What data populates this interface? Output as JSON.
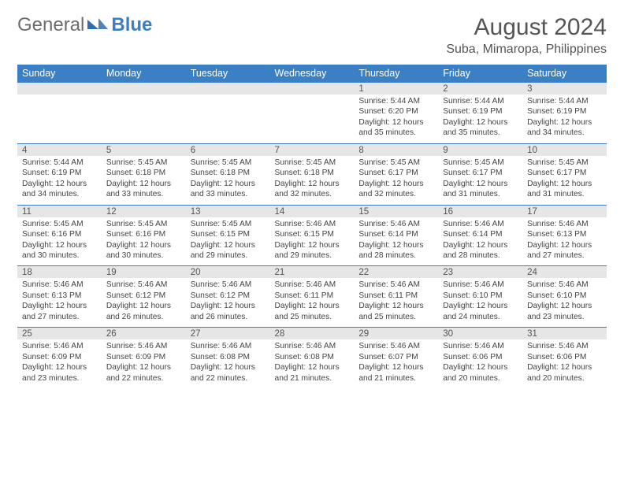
{
  "branding": {
    "word1": "General",
    "word2": "Blue",
    "logo_fill": "#2f6fb0"
  },
  "title": {
    "month_year": "August 2024",
    "location": "Suba, Mimaropa, Philippines",
    "title_fontsize": 30,
    "location_fontsize": 16,
    "text_color": "#555555"
  },
  "calendar": {
    "type": "table",
    "header_bg": "#3b7fc4",
    "header_text_color": "#ffffff",
    "daynum_bg": "#e6e6e6",
    "row_divider_color": "#3b7fc4",
    "body_text_color": "#444444",
    "cell_fontsize": 10.2,
    "day_headers": [
      "Sunday",
      "Monday",
      "Tuesday",
      "Wednesday",
      "Thursday",
      "Friday",
      "Saturday"
    ],
    "weeks": [
      [
        null,
        null,
        null,
        null,
        {
          "n": "1",
          "lines": [
            "Sunrise: 5:44 AM",
            "Sunset: 6:20 PM",
            "Daylight: 12 hours",
            "and 35 minutes."
          ]
        },
        {
          "n": "2",
          "lines": [
            "Sunrise: 5:44 AM",
            "Sunset: 6:19 PM",
            "Daylight: 12 hours",
            "and 35 minutes."
          ]
        },
        {
          "n": "3",
          "lines": [
            "Sunrise: 5:44 AM",
            "Sunset: 6:19 PM",
            "Daylight: 12 hours",
            "and 34 minutes."
          ]
        }
      ],
      [
        {
          "n": "4",
          "lines": [
            "Sunrise: 5:44 AM",
            "Sunset: 6:19 PM",
            "Daylight: 12 hours",
            "and 34 minutes."
          ]
        },
        {
          "n": "5",
          "lines": [
            "Sunrise: 5:45 AM",
            "Sunset: 6:18 PM",
            "Daylight: 12 hours",
            "and 33 minutes."
          ]
        },
        {
          "n": "6",
          "lines": [
            "Sunrise: 5:45 AM",
            "Sunset: 6:18 PM",
            "Daylight: 12 hours",
            "and 33 minutes."
          ]
        },
        {
          "n": "7",
          "lines": [
            "Sunrise: 5:45 AM",
            "Sunset: 6:18 PM",
            "Daylight: 12 hours",
            "and 32 minutes."
          ]
        },
        {
          "n": "8",
          "lines": [
            "Sunrise: 5:45 AM",
            "Sunset: 6:17 PM",
            "Daylight: 12 hours",
            "and 32 minutes."
          ]
        },
        {
          "n": "9",
          "lines": [
            "Sunrise: 5:45 AM",
            "Sunset: 6:17 PM",
            "Daylight: 12 hours",
            "and 31 minutes."
          ]
        },
        {
          "n": "10",
          "lines": [
            "Sunrise: 5:45 AM",
            "Sunset: 6:17 PM",
            "Daylight: 12 hours",
            "and 31 minutes."
          ]
        }
      ],
      [
        {
          "n": "11",
          "lines": [
            "Sunrise: 5:45 AM",
            "Sunset: 6:16 PM",
            "Daylight: 12 hours",
            "and 30 minutes."
          ]
        },
        {
          "n": "12",
          "lines": [
            "Sunrise: 5:45 AM",
            "Sunset: 6:16 PM",
            "Daylight: 12 hours",
            "and 30 minutes."
          ]
        },
        {
          "n": "13",
          "lines": [
            "Sunrise: 5:45 AM",
            "Sunset: 6:15 PM",
            "Daylight: 12 hours",
            "and 29 minutes."
          ]
        },
        {
          "n": "14",
          "lines": [
            "Sunrise: 5:46 AM",
            "Sunset: 6:15 PM",
            "Daylight: 12 hours",
            "and 29 minutes."
          ]
        },
        {
          "n": "15",
          "lines": [
            "Sunrise: 5:46 AM",
            "Sunset: 6:14 PM",
            "Daylight: 12 hours",
            "and 28 minutes."
          ]
        },
        {
          "n": "16",
          "lines": [
            "Sunrise: 5:46 AM",
            "Sunset: 6:14 PM",
            "Daylight: 12 hours",
            "and 28 minutes."
          ]
        },
        {
          "n": "17",
          "lines": [
            "Sunrise: 5:46 AM",
            "Sunset: 6:13 PM",
            "Daylight: 12 hours",
            "and 27 minutes."
          ]
        }
      ],
      [
        {
          "n": "18",
          "lines": [
            "Sunrise: 5:46 AM",
            "Sunset: 6:13 PM",
            "Daylight: 12 hours",
            "and 27 minutes."
          ]
        },
        {
          "n": "19",
          "lines": [
            "Sunrise: 5:46 AM",
            "Sunset: 6:12 PM",
            "Daylight: 12 hours",
            "and 26 minutes."
          ]
        },
        {
          "n": "20",
          "lines": [
            "Sunrise: 5:46 AM",
            "Sunset: 6:12 PM",
            "Daylight: 12 hours",
            "and 26 minutes."
          ]
        },
        {
          "n": "21",
          "lines": [
            "Sunrise: 5:46 AM",
            "Sunset: 6:11 PM",
            "Daylight: 12 hours",
            "and 25 minutes."
          ]
        },
        {
          "n": "22",
          "lines": [
            "Sunrise: 5:46 AM",
            "Sunset: 6:11 PM",
            "Daylight: 12 hours",
            "and 25 minutes."
          ]
        },
        {
          "n": "23",
          "lines": [
            "Sunrise: 5:46 AM",
            "Sunset: 6:10 PM",
            "Daylight: 12 hours",
            "and 24 minutes."
          ]
        },
        {
          "n": "24",
          "lines": [
            "Sunrise: 5:46 AM",
            "Sunset: 6:10 PM",
            "Daylight: 12 hours",
            "and 23 minutes."
          ]
        }
      ],
      [
        {
          "n": "25",
          "lines": [
            "Sunrise: 5:46 AM",
            "Sunset: 6:09 PM",
            "Daylight: 12 hours",
            "and 23 minutes."
          ]
        },
        {
          "n": "26",
          "lines": [
            "Sunrise: 5:46 AM",
            "Sunset: 6:09 PM",
            "Daylight: 12 hours",
            "and 22 minutes."
          ]
        },
        {
          "n": "27",
          "lines": [
            "Sunrise: 5:46 AM",
            "Sunset: 6:08 PM",
            "Daylight: 12 hours",
            "and 22 minutes."
          ]
        },
        {
          "n": "28",
          "lines": [
            "Sunrise: 5:46 AM",
            "Sunset: 6:08 PM",
            "Daylight: 12 hours",
            "and 21 minutes."
          ]
        },
        {
          "n": "29",
          "lines": [
            "Sunrise: 5:46 AM",
            "Sunset: 6:07 PM",
            "Daylight: 12 hours",
            "and 21 minutes."
          ]
        },
        {
          "n": "30",
          "lines": [
            "Sunrise: 5:46 AM",
            "Sunset: 6:06 PM",
            "Daylight: 12 hours",
            "and 20 minutes."
          ]
        },
        {
          "n": "31",
          "lines": [
            "Sunrise: 5:46 AM",
            "Sunset: 6:06 PM",
            "Daylight: 12 hours",
            "and 20 minutes."
          ]
        }
      ]
    ]
  }
}
